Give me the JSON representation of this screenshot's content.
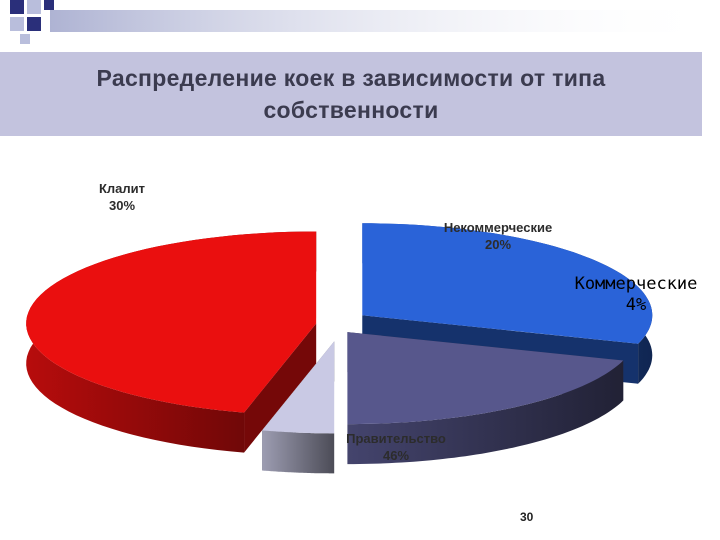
{
  "slide": {
    "title": "Распределение коек в зависимости от типа собственности",
    "page_number": "30"
  },
  "chart_data": {
    "type": "pie",
    "title": "Распределение коек в зависимости от типа собственности",
    "three_d": true,
    "categories": [
      "Клалит",
      "Некоммерческие",
      "Коммерческие",
      "Правительство"
    ],
    "values": [
      30,
      20,
      4,
      46
    ],
    "units": "%",
    "labels": [
      {
        "name": "Клалит",
        "value": "30%"
      },
      {
        "name": "Некоммерческие",
        "value": "20%"
      },
      {
        "name": "Коммерческие",
        "value": "4%"
      },
      {
        "name": "Правительство",
        "value": "46%"
      }
    ],
    "colors": {
      "Клалит": "#2a63d8",
      "Некоммерческие": "#57578c",
      "Коммерческие": "#c9c9e4",
      "Правительство": "#ea0f0f"
    },
    "legend": "none"
  }
}
